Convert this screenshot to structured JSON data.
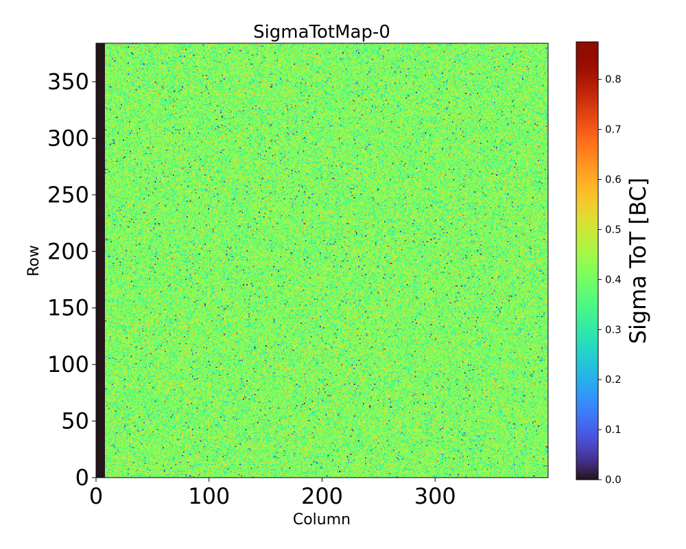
{
  "chart_data": {
    "type": "heatmap",
    "title": "SigmaTotMap-0",
    "xlabel": "Column",
    "ylabel": "Row",
    "colorbar_label": "Sigma ToT [BC]",
    "colormap": "turbo",
    "xlim": [
      0,
      400
    ],
    "ylim": [
      0,
      384
    ],
    "clim": [
      0,
      0.875
    ],
    "x_ticks": [
      0,
      100,
      200,
      300
    ],
    "x_tick_labels": [
      "0",
      "100",
      "200",
      "300"
    ],
    "y_ticks": [
      0,
      50,
      100,
      150,
      200,
      250,
      300,
      350
    ],
    "y_tick_labels": [
      "0",
      "50",
      "100",
      "150",
      "200",
      "250",
      "300",
      "350"
    ],
    "colorbar_ticks": [
      0.0,
      0.1,
      0.2,
      0.3,
      0.4,
      0.5,
      0.6,
      0.7,
      0.8
    ],
    "colorbar_tick_labels": [
      "0.0",
      "0.1",
      "0.2",
      "0.3",
      "0.4",
      "0.5",
      "0.6",
      "0.7",
      "0.8"
    ],
    "n_columns": 400,
    "n_rows": 384,
    "dead_columns": [
      0,
      7
    ],
    "value_distribution": {
      "typical_range": [
        0.3,
        0.5
      ],
      "mean": 0.41,
      "std": 0.06,
      "zero_fraction": 0.01
    }
  }
}
